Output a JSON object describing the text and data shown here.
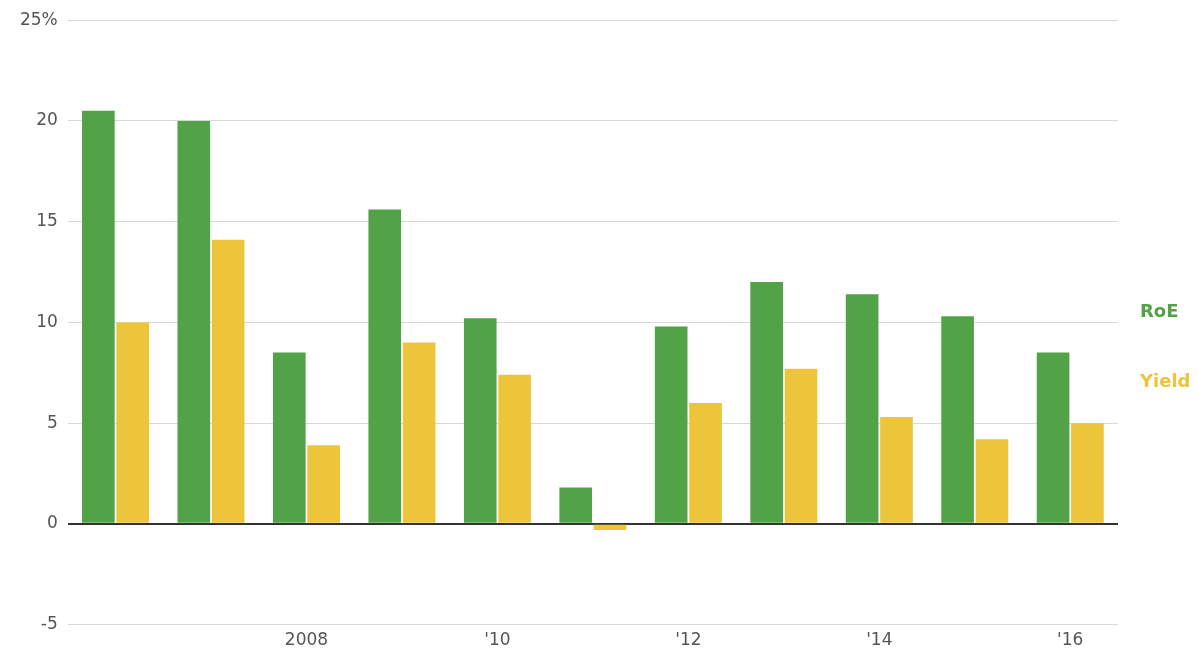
{
  "chart_data": {
    "type": "bar",
    "categories": [
      null,
      null,
      "2008",
      null,
      "'10",
      null,
      "'12",
      null,
      "'14",
      null,
      "'16"
    ],
    "series": [
      {
        "name": "RoE",
        "color": "#52a347",
        "values": [
          20.5,
          20.0,
          8.5,
          15.6,
          10.2,
          1.8,
          9.8,
          12.0,
          11.4,
          10.3,
          8.5
        ]
      },
      {
        "name": "Yield",
        "color": "#ecc53a",
        "values": [
          10.0,
          14.1,
          3.9,
          9.0,
          7.4,
          -0.3,
          6.0,
          7.7,
          5.3,
          4.2,
          5.0
        ]
      }
    ],
    "ylim": [
      -5,
      25
    ],
    "yticks": [
      -5,
      0,
      5,
      10,
      15,
      20,
      {
        "value": 25,
        "label": "25%"
      }
    ],
    "grid": "y",
    "legend": "right"
  }
}
